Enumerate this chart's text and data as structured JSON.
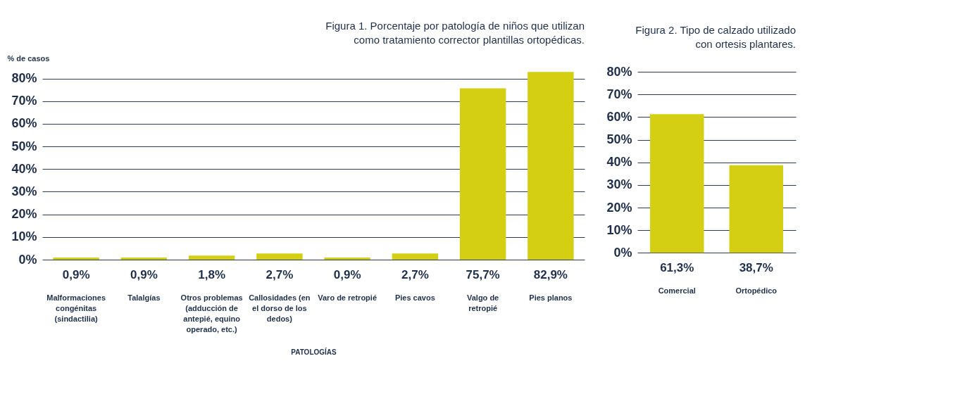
{
  "chart_data": [
    {
      "type": "bar",
      "title": "Figura 1. Porcentaje por patología de niños que utilizan como tratamiento corrector plantillas ortopédicas.",
      "ylabel": "% de casos",
      "xlabel": "PATOLOGÍAS",
      "categories": [
        "Malformaciones congénitas (sindactilia)",
        "Talalgías",
        "Otros problemas (adducción de antepié, equino operado, etc.)",
        "Callosidades (en el dorso de los dedos)",
        "Varo de retropié",
        "Pies cavos",
        "Valgo de retropié",
        "Pies planos"
      ],
      "values": [
        0.9,
        0.9,
        1.8,
        2.7,
        0.9,
        2.7,
        75.7,
        82.9
      ],
      "value_labels": [
        "0,9%",
        "0,9%",
        "1,8%",
        "2,7%",
        "0,9%",
        "2,7%",
        "75,7%",
        "82,9%"
      ],
      "color": "#d4cf12",
      "ylim": [
        0,
        83
      ],
      "yticks": [
        {
          "value": 0,
          "label": "0%"
        },
        {
          "value": 10,
          "label": "10%"
        },
        {
          "value": 20,
          "label": "20%"
        },
        {
          "value": 30,
          "label": "30%"
        },
        {
          "value": 40,
          "label": "40%"
        },
        {
          "value": 50,
          "label": "50%"
        },
        {
          "value": 60,
          "label": "60%"
        },
        {
          "value": 70,
          "label": "70%"
        },
        {
          "value": 80,
          "label": "80%"
        }
      ],
      "grid": "y"
    },
    {
      "type": "bar",
      "title": "Figura 2. Tipo de calzado utilizado con ortesis plantares.",
      "categories": [
        "Comercial",
        "Ortopédico"
      ],
      "values": [
        61.3,
        38.7
      ],
      "value_labels": [
        "61,3%",
        "38,7%"
      ],
      "color": "#d4cf12",
      "ylim": [
        0,
        80
      ],
      "yticks": [
        {
          "value": 0,
          "label": "0%"
        },
        {
          "value": 10,
          "label": "10%"
        },
        {
          "value": 20,
          "label": "20%"
        },
        {
          "value": 30,
          "label": "30%"
        },
        {
          "value": 40,
          "label": "40%"
        },
        {
          "value": 50,
          "label": "50%"
        },
        {
          "value": 60,
          "label": "60%"
        },
        {
          "value": 70,
          "label": "70%"
        },
        {
          "value": 80,
          "label": "80%"
        }
      ],
      "grid": "y"
    }
  ]
}
